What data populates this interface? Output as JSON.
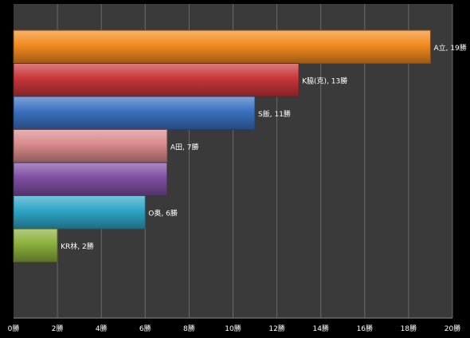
{
  "chart_data": {
    "type": "bar",
    "orientation": "horizontal",
    "categories": [
      "A立",
      "K脇(克)",
      "S飯",
      "A田",
      "",
      "O奥",
      "KR林"
    ],
    "values": [
      19,
      13,
      11,
      7,
      7,
      6,
      2
    ],
    "data_labels": [
      "A立, 19勝",
      "K脇(克), 13勝",
      "S飯, 11勝",
      "A田, 7勝",
      "",
      "O奥, 6勝",
      "KR林, 2勝"
    ],
    "colors": [
      "#f28a1e",
      "#c8363a",
      "#3a70c0",
      "#d9898b",
      "#7e4ea2",
      "#2ea6c6",
      "#8cb03c"
    ],
    "xlim": [
      0,
      20
    ],
    "x_ticks": [
      0,
      2,
      4,
      6,
      8,
      10,
      12,
      14,
      16,
      18,
      20
    ],
    "x_tick_labels": [
      "0勝",
      "2勝",
      "4勝",
      "6勝",
      "8勝",
      "10勝",
      "12勝",
      "14勝",
      "16勝",
      "18勝",
      "20勝"
    ],
    "grid": true,
    "background": "#3a3a3a",
    "title": "",
    "xlabel": "",
    "ylabel": ""
  }
}
